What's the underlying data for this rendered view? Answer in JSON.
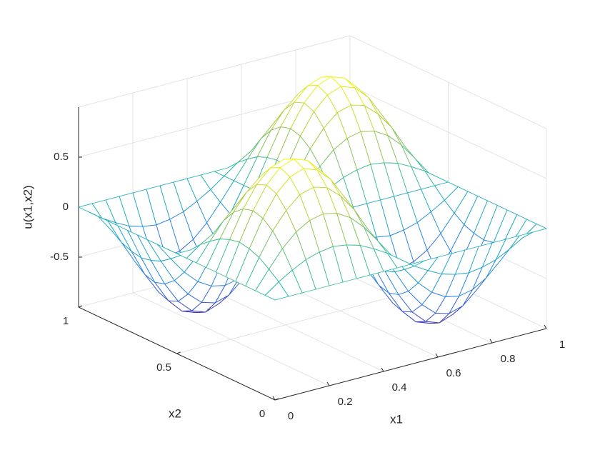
{
  "chart_data": {
    "type": "mesh",
    "xlabel": "x1",
    "ylabel": "x2",
    "zlabel": "u(x1,x2)",
    "colormap": "parula",
    "grid": true,
    "xlim": [
      0,
      1
    ],
    "ylim": [
      0,
      1
    ],
    "zlim": [
      -1,
      1
    ],
    "xticks": [
      0,
      0.2,
      0.4,
      0.6,
      0.8,
      1
    ],
    "yticks": [
      0,
      0.5,
      1
    ],
    "zticks": [
      -0.5,
      0,
      0.5
    ],
    "x": [
      0,
      0.05,
      0.1,
      0.15,
      0.2,
      0.25,
      0.3,
      0.35,
      0.4,
      0.45,
      0.5,
      0.55,
      0.6,
      0.65,
      0.7,
      0.75,
      0.8,
      0.85,
      0.9,
      0.95,
      1
    ],
    "y": [
      0,
      0.05,
      0.1,
      0.15,
      0.2,
      0.25,
      0.3,
      0.35,
      0.4,
      0.45,
      0.5,
      0.55,
      0.6,
      0.65,
      0.7,
      0.75,
      0.8,
      0.85,
      0.9,
      0.95,
      1
    ],
    "z": [
      [
        0,
        0,
        0,
        0,
        0,
        0,
        0,
        0,
        0,
        0,
        0,
        0,
        0,
        0,
        0,
        0,
        0,
        0,
        0,
        0,
        0
      ],
      [
        0,
        0.1,
        0.18,
        0.25,
        0.29,
        0.31,
        0.29,
        0.25,
        0.18,
        0.1,
        0,
        -0.1,
        -0.18,
        -0.25,
        -0.29,
        -0.31,
        -0.29,
        -0.25,
        -0.18,
        -0.1,
        0
      ],
      [
        0,
        0.18,
        0.35,
        0.48,
        0.56,
        0.59,
        0.56,
        0.48,
        0.35,
        0.18,
        0,
        -0.18,
        -0.35,
        -0.48,
        -0.56,
        -0.59,
        -0.56,
        -0.48,
        -0.35,
        -0.18,
        0
      ],
      [
        0,
        0.25,
        0.48,
        0.65,
        0.77,
        0.81,
        0.77,
        0.65,
        0.48,
        0.25,
        0,
        -0.25,
        -0.48,
        -0.65,
        -0.77,
        -0.81,
        -0.77,
        -0.65,
        -0.48,
        -0.25,
        0
      ],
      [
        0,
        0.29,
        0.56,
        0.77,
        0.9,
        0.95,
        0.9,
        0.77,
        0.56,
        0.29,
        0,
        -0.29,
        -0.56,
        -0.77,
        -0.9,
        -0.95,
        -0.9,
        -0.77,
        -0.56,
        -0.29,
        0
      ],
      [
        0,
        0.31,
        0.59,
        0.81,
        0.95,
        1,
        0.95,
        0.81,
        0.59,
        0.31,
        0,
        -0.31,
        -0.59,
        -0.81,
        -0.95,
        -1,
        -0.95,
        -0.81,
        -0.59,
        -0.31,
        0
      ],
      [
        0,
        0.29,
        0.56,
        0.77,
        0.9,
        0.95,
        0.9,
        0.77,
        0.56,
        0.29,
        0,
        -0.29,
        -0.56,
        -0.77,
        -0.9,
        -0.95,
        -0.9,
        -0.77,
        -0.56,
        -0.29,
        0
      ],
      [
        0,
        0.25,
        0.48,
        0.65,
        0.77,
        0.81,
        0.77,
        0.65,
        0.48,
        0.25,
        0,
        -0.25,
        -0.48,
        -0.65,
        -0.77,
        -0.81,
        -0.77,
        -0.65,
        -0.48,
        -0.25,
        0
      ],
      [
        0,
        0.18,
        0.35,
        0.48,
        0.56,
        0.59,
        0.56,
        0.48,
        0.35,
        0.18,
        0,
        -0.18,
        -0.35,
        -0.48,
        -0.56,
        -0.59,
        -0.56,
        -0.48,
        -0.35,
        -0.18,
        0
      ],
      [
        0,
        0.1,
        0.18,
        0.25,
        0.29,
        0.31,
        0.29,
        0.25,
        0.18,
        0.1,
        0,
        -0.1,
        -0.18,
        -0.25,
        -0.29,
        -0.31,
        -0.29,
        -0.25,
        -0.18,
        -0.1,
        0
      ],
      [
        0,
        0,
        0,
        0,
        0,
        0,
        0,
        0,
        0,
        0,
        0,
        0,
        0,
        0,
        0,
        0,
        0,
        0,
        0,
        0,
        0
      ],
      [
        0,
        -0.1,
        -0.18,
        -0.25,
        -0.29,
        -0.31,
        -0.29,
        -0.25,
        -0.18,
        -0.1,
        0,
        0.1,
        0.18,
        0.25,
        0.29,
        0.31,
        0.29,
        0.25,
        0.18,
        0.1,
        0
      ],
      [
        0,
        -0.18,
        -0.35,
        -0.48,
        -0.56,
        -0.59,
        -0.56,
        -0.48,
        -0.35,
        -0.18,
        0,
        0.18,
        0.35,
        0.48,
        0.56,
        0.59,
        0.56,
        0.48,
        0.35,
        0.18,
        0
      ],
      [
        0,
        -0.25,
        -0.48,
        -0.65,
        -0.77,
        -0.81,
        -0.77,
        -0.65,
        -0.48,
        -0.25,
        0,
        0.25,
        0.48,
        0.65,
        0.77,
        0.81,
        0.77,
        0.65,
        0.48,
        0.25,
        0
      ],
      [
        0,
        -0.29,
        -0.56,
        -0.77,
        -0.9,
        -0.95,
        -0.9,
        -0.77,
        -0.56,
        -0.29,
        0,
        0.29,
        0.56,
        0.77,
        0.9,
        0.95,
        0.9,
        0.77,
        0.56,
        0.29,
        0
      ],
      [
        0,
        -0.31,
        -0.59,
        -0.81,
        -0.95,
        -1,
        -0.95,
        -0.81,
        -0.59,
        -0.31,
        0,
        0.31,
        0.59,
        0.81,
        0.95,
        1,
        0.95,
        0.81,
        0.59,
        0.31,
        0
      ],
      [
        0,
        -0.29,
        -0.56,
        -0.77,
        -0.9,
        -0.95,
        -0.9,
        -0.77,
        -0.56,
        -0.29,
        0,
        0.29,
        0.56,
        0.77,
        0.9,
        0.95,
        0.9,
        0.77,
        0.56,
        0.29,
        0
      ],
      [
        0,
        -0.25,
        -0.48,
        -0.65,
        -0.77,
        -0.81,
        -0.77,
        -0.65,
        -0.48,
        -0.25,
        0,
        0.25,
        0.48,
        0.65,
        0.77,
        0.81,
        0.77,
        0.65,
        0.48,
        0.25,
        0
      ],
      [
        0,
        -0.18,
        -0.35,
        -0.48,
        -0.56,
        -0.59,
        -0.56,
        -0.48,
        -0.35,
        -0.18,
        0,
        0.18,
        0.35,
        0.48,
        0.56,
        0.59,
        0.56,
        0.48,
        0.35,
        0.18,
        0
      ],
      [
        0,
        -0.1,
        -0.18,
        -0.25,
        -0.29,
        -0.31,
        -0.29,
        -0.25,
        -0.18,
        -0.1,
        0,
        0.1,
        0.18,
        0.25,
        0.29,
        0.31,
        0.29,
        0.25,
        0.18,
        0.1,
        0
      ],
      [
        0,
        0,
        0,
        0,
        0,
        0,
        0,
        0,
        0,
        0,
        0,
        0,
        0,
        0,
        0,
        0,
        0,
        0,
        0,
        0,
        0
      ]
    ]
  }
}
